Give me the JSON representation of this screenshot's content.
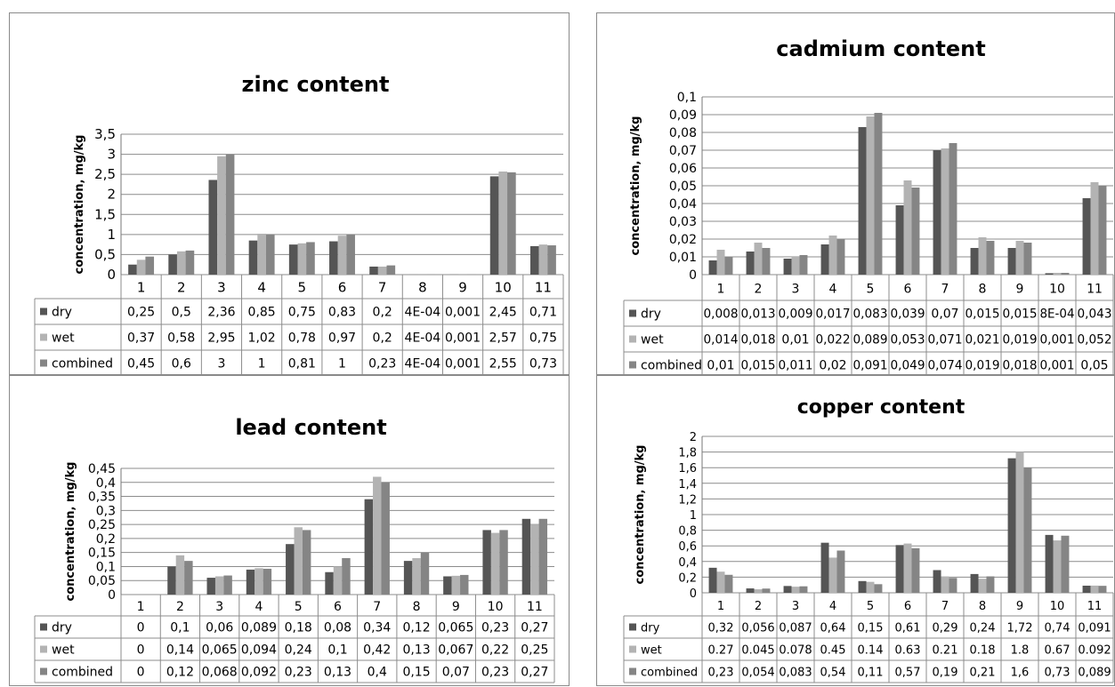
{
  "charts": [
    {
      "title": "zinc content",
      "ylabel": "concentration, mg/kg",
      "ylim": [
        0,
        3.5
      ],
      "yticks": [
        "0",
        "0,5",
        "1",
        "1,5",
        "2",
        "2,5",
        "3",
        "3,5"
      ],
      "categories": [
        "1",
        "2",
        "3",
        "4",
        "5",
        "6",
        "7",
        "8",
        "9",
        "10",
        "11"
      ],
      "series": [
        {
          "name": "dry",
          "values": [
            0.25,
            0.5,
            2.36,
            0.85,
            0.75,
            0.83,
            0.2,
            0.0004,
            0.001,
            2.45,
            0.71
          ],
          "labels": [
            "0,25",
            "0,5",
            "2,36",
            "0,85",
            "0,75",
            "0,83",
            "0,2",
            "4E-04",
            "0,001",
            "2,45",
            "0,71"
          ]
        },
        {
          "name": "wet",
          "values": [
            0.37,
            0.58,
            2.95,
            1.02,
            0.78,
            0.97,
            0.2,
            0.0004,
            0.001,
            2.57,
            0.75
          ],
          "labels": [
            "0,37",
            "0,58",
            "2,95",
            "1,02",
            "0,78",
            "0,97",
            "0,2",
            "4E-04",
            "0,001",
            "2,57",
            "0,75"
          ]
        },
        {
          "name": "combined",
          "values": [
            0.45,
            0.6,
            3,
            1,
            0.81,
            1,
            0.23,
            0.0004,
            0.001,
            2.55,
            0.73
          ],
          "labels": [
            "0,45",
            "0,6",
            "3",
            "1",
            "0,81",
            "1",
            "0,23",
            "4E-04",
            "0,001",
            "2,55",
            "0,73"
          ]
        }
      ]
    },
    {
      "title": "cadmium content",
      "ylabel": "concentration, mg/kg",
      "ylim": [
        0,
        0.1
      ],
      "yticks": [
        "0",
        "0,01",
        "0,02",
        "0,03",
        "0,04",
        "0,05",
        "0,06",
        "0,07",
        "0,08",
        "0,09",
        "0,1"
      ],
      "categories": [
        "1",
        "2",
        "3",
        "4",
        "5",
        "6",
        "7",
        "8",
        "9",
        "10",
        "11"
      ],
      "series": [
        {
          "name": "dry",
          "values": [
            0.008,
            0.013,
            0.009,
            0.017,
            0.083,
            0.039,
            0.07,
            0.015,
            0.015,
            0.0008,
            0.043
          ],
          "labels": [
            "0,008",
            "0,013",
            "0,009",
            "0,017",
            "0,083",
            "0,039",
            "0,07",
            "0,015",
            "0,015",
            "8E-04",
            "0,043"
          ]
        },
        {
          "name": "wet",
          "values": [
            0.014,
            0.018,
            0.01,
            0.022,
            0.089,
            0.053,
            0.071,
            0.021,
            0.019,
            0.001,
            0.052
          ],
          "labels": [
            "0,014",
            "0,018",
            "0,01",
            "0,022",
            "0,089",
            "0,053",
            "0,071",
            "0,021",
            "0,019",
            "0,001",
            "0,052"
          ]
        },
        {
          "name": "combined",
          "values": [
            0.01,
            0.015,
            0.011,
            0.02,
            0.091,
            0.049,
            0.074,
            0.019,
            0.018,
            0.001,
            0.05
          ],
          "labels": [
            "0,01",
            "0,015",
            "0,011",
            "0,02",
            "0,091",
            "0,049",
            "0,074",
            "0,019",
            "0,018",
            "0,001",
            "0,05"
          ]
        }
      ]
    },
    {
      "title": "lead content",
      "ylabel": "concentration, mg/kg",
      "ylim": [
        0,
        0.45
      ],
      "yticks": [
        "0",
        "0,05",
        "0,1",
        "0,15",
        "0,2",
        "0,25",
        "0,3",
        "0,35",
        "0,4",
        "0,45"
      ],
      "categories": [
        "1",
        "2",
        "3",
        "4",
        "5",
        "6",
        "7",
        "8",
        "9",
        "10",
        "11"
      ],
      "series": [
        {
          "name": "dry",
          "values": [
            0,
            0.1,
            0.06,
            0.089,
            0.18,
            0.08,
            0.34,
            0.12,
            0.065,
            0.23,
            0.27
          ],
          "labels": [
            "0",
            "0,1",
            "0,06",
            "0,089",
            "0,18",
            "0,08",
            "0,34",
            "0,12",
            "0,065",
            "0,23",
            "0,27"
          ]
        },
        {
          "name": "wet",
          "values": [
            0,
            0.14,
            0.065,
            0.094,
            0.24,
            0.1,
            0.42,
            0.13,
            0.067,
            0.22,
            0.25
          ],
          "labels": [
            "0",
            "0,14",
            "0,065",
            "0,094",
            "0,24",
            "0,1",
            "0,42",
            "0,13",
            "0,067",
            "0,22",
            "0,25"
          ]
        },
        {
          "name": "combined",
          "values": [
            0,
            0.12,
            0.068,
            0.092,
            0.23,
            0.13,
            0.4,
            0.15,
            0.07,
            0.23,
            0.27
          ],
          "labels": [
            "0",
            "0,12",
            "0,068",
            "0,092",
            "0,23",
            "0,13",
            "0,4",
            "0,15",
            "0,07",
            "0,23",
            "0,27"
          ]
        }
      ]
    },
    {
      "title": "copper content",
      "ylabel": "concentration, mg/kg",
      "ylim": [
        0,
        2
      ],
      "yticks": [
        "0",
        "0,2",
        "0,4",
        "0,6",
        "0,8",
        "1",
        "1,2",
        "1,4",
        "1,6",
        "1,8",
        "2"
      ],
      "categories": [
        "1",
        "2",
        "3",
        "4",
        "5",
        "6",
        "7",
        "8",
        "9",
        "10",
        "11"
      ],
      "series": [
        {
          "name": "dry",
          "values": [
            0.32,
            0.056,
            0.087,
            0.64,
            0.15,
            0.61,
            0.29,
            0.24,
            1.72,
            0.74,
            0.091
          ],
          "labels": [
            "0,32",
            "0,056",
            "0,087",
            "0,64",
            "0,15",
            "0,61",
            "0,29",
            "0,24",
            "1,72",
            "0,74",
            "0,091"
          ]
        },
        {
          "name": "wet",
          "values": [
            0.27,
            0.045,
            0.078,
            0.45,
            0.14,
            0.63,
            0.21,
            0.18,
            1.8,
            0.67,
            0.092
          ],
          "labels": [
            "0.27",
            "0.045",
            "0.078",
            "0.45",
            "0.14",
            "0.63",
            "0.21",
            "0.18",
            "1.8",
            "0.67",
            "0.092"
          ]
        },
        {
          "name": "combined",
          "values": [
            0.23,
            0.054,
            0.083,
            0.54,
            0.11,
            0.57,
            0.19,
            0.21,
            1.6,
            0.73,
            0.089
          ],
          "labels": [
            "0,23",
            "0,054",
            "0,083",
            "0,54",
            "0,11",
            "0,57",
            "0,19",
            "0,21",
            "1,6",
            "0,73",
            "0,089"
          ]
        }
      ]
    }
  ],
  "chart_data": [
    {
      "type": "bar",
      "title": "zinc content",
      "ylabel": "concentration, mg/kg",
      "ylim": [
        0,
        3.5
      ],
      "categories": [
        "1",
        "2",
        "3",
        "4",
        "5",
        "6",
        "7",
        "8",
        "9",
        "10",
        "11"
      ],
      "series": [
        {
          "name": "dry",
          "values": [
            0.25,
            0.5,
            2.36,
            0.85,
            0.75,
            0.83,
            0.2,
            0.0004,
            0.001,
            2.45,
            0.71
          ]
        },
        {
          "name": "wet",
          "values": [
            0.37,
            0.58,
            2.95,
            1.02,
            0.78,
            0.97,
            0.2,
            0.0004,
            0.001,
            2.57,
            0.75
          ]
        },
        {
          "name": "combined",
          "values": [
            0.45,
            0.6,
            3,
            1,
            0.81,
            1,
            0.23,
            0.0004,
            0.001,
            2.55,
            0.73
          ]
        }
      ]
    },
    {
      "type": "bar",
      "title": "cadmium content",
      "ylabel": "concentration, mg/kg",
      "ylim": [
        0,
        0.1
      ],
      "categories": [
        "1",
        "2",
        "3",
        "4",
        "5",
        "6",
        "7",
        "8",
        "9",
        "10",
        "11"
      ],
      "series": [
        {
          "name": "dry",
          "values": [
            0.008,
            0.013,
            0.009,
            0.017,
            0.083,
            0.039,
            0.07,
            0.015,
            0.015,
            0.0008,
            0.043
          ]
        },
        {
          "name": "wet",
          "values": [
            0.014,
            0.018,
            0.01,
            0.022,
            0.089,
            0.053,
            0.071,
            0.021,
            0.019,
            0.001,
            0.052
          ]
        },
        {
          "name": "combined",
          "values": [
            0.01,
            0.015,
            0.011,
            0.02,
            0.091,
            0.049,
            0.074,
            0.019,
            0.018,
            0.001,
            0.05
          ]
        }
      ]
    },
    {
      "type": "bar",
      "title": "lead content",
      "ylabel": "concentration, mg/kg",
      "ylim": [
        0,
        0.45
      ],
      "categories": [
        "1",
        "2",
        "3",
        "4",
        "5",
        "6",
        "7",
        "8",
        "9",
        "10",
        "11"
      ],
      "series": [
        {
          "name": "dry",
          "values": [
            0,
            0.1,
            0.06,
            0.089,
            0.18,
            0.08,
            0.34,
            0.12,
            0.065,
            0.23,
            0.27
          ]
        },
        {
          "name": "wet",
          "values": [
            0,
            0.14,
            0.065,
            0.094,
            0.24,
            0.1,
            0.42,
            0.13,
            0.067,
            0.22,
            0.25
          ]
        },
        {
          "name": "combined",
          "values": [
            0,
            0.12,
            0.068,
            0.092,
            0.23,
            0.13,
            0.4,
            0.15,
            0.07,
            0.23,
            0.27
          ]
        }
      ]
    },
    {
      "type": "bar",
      "title": "copper content",
      "ylabel": "concentration, mg/kg",
      "ylim": [
        0,
        2
      ],
      "categories": [
        "1",
        "2",
        "3",
        "4",
        "5",
        "6",
        "7",
        "8",
        "9",
        "10",
        "11"
      ],
      "series": [
        {
          "name": "dry",
          "values": [
            0.32,
            0.056,
            0.087,
            0.64,
            0.15,
            0.61,
            0.29,
            0.24,
            1.72,
            0.74,
            0.091
          ]
        },
        {
          "name": "wet",
          "values": [
            0.27,
            0.045,
            0.078,
            0.45,
            0.14,
            0.63,
            0.21,
            0.18,
            1.8,
            0.67,
            0.092
          ]
        },
        {
          "name": "combined",
          "values": [
            0.23,
            0.054,
            0.083,
            0.54,
            0.11,
            0.57,
            0.19,
            0.21,
            1.6,
            0.73,
            0.089
          ]
        }
      ]
    }
  ],
  "colors": {
    "dry": "#555555",
    "wet": "#b3b3b3",
    "combined": "#858585"
  }
}
